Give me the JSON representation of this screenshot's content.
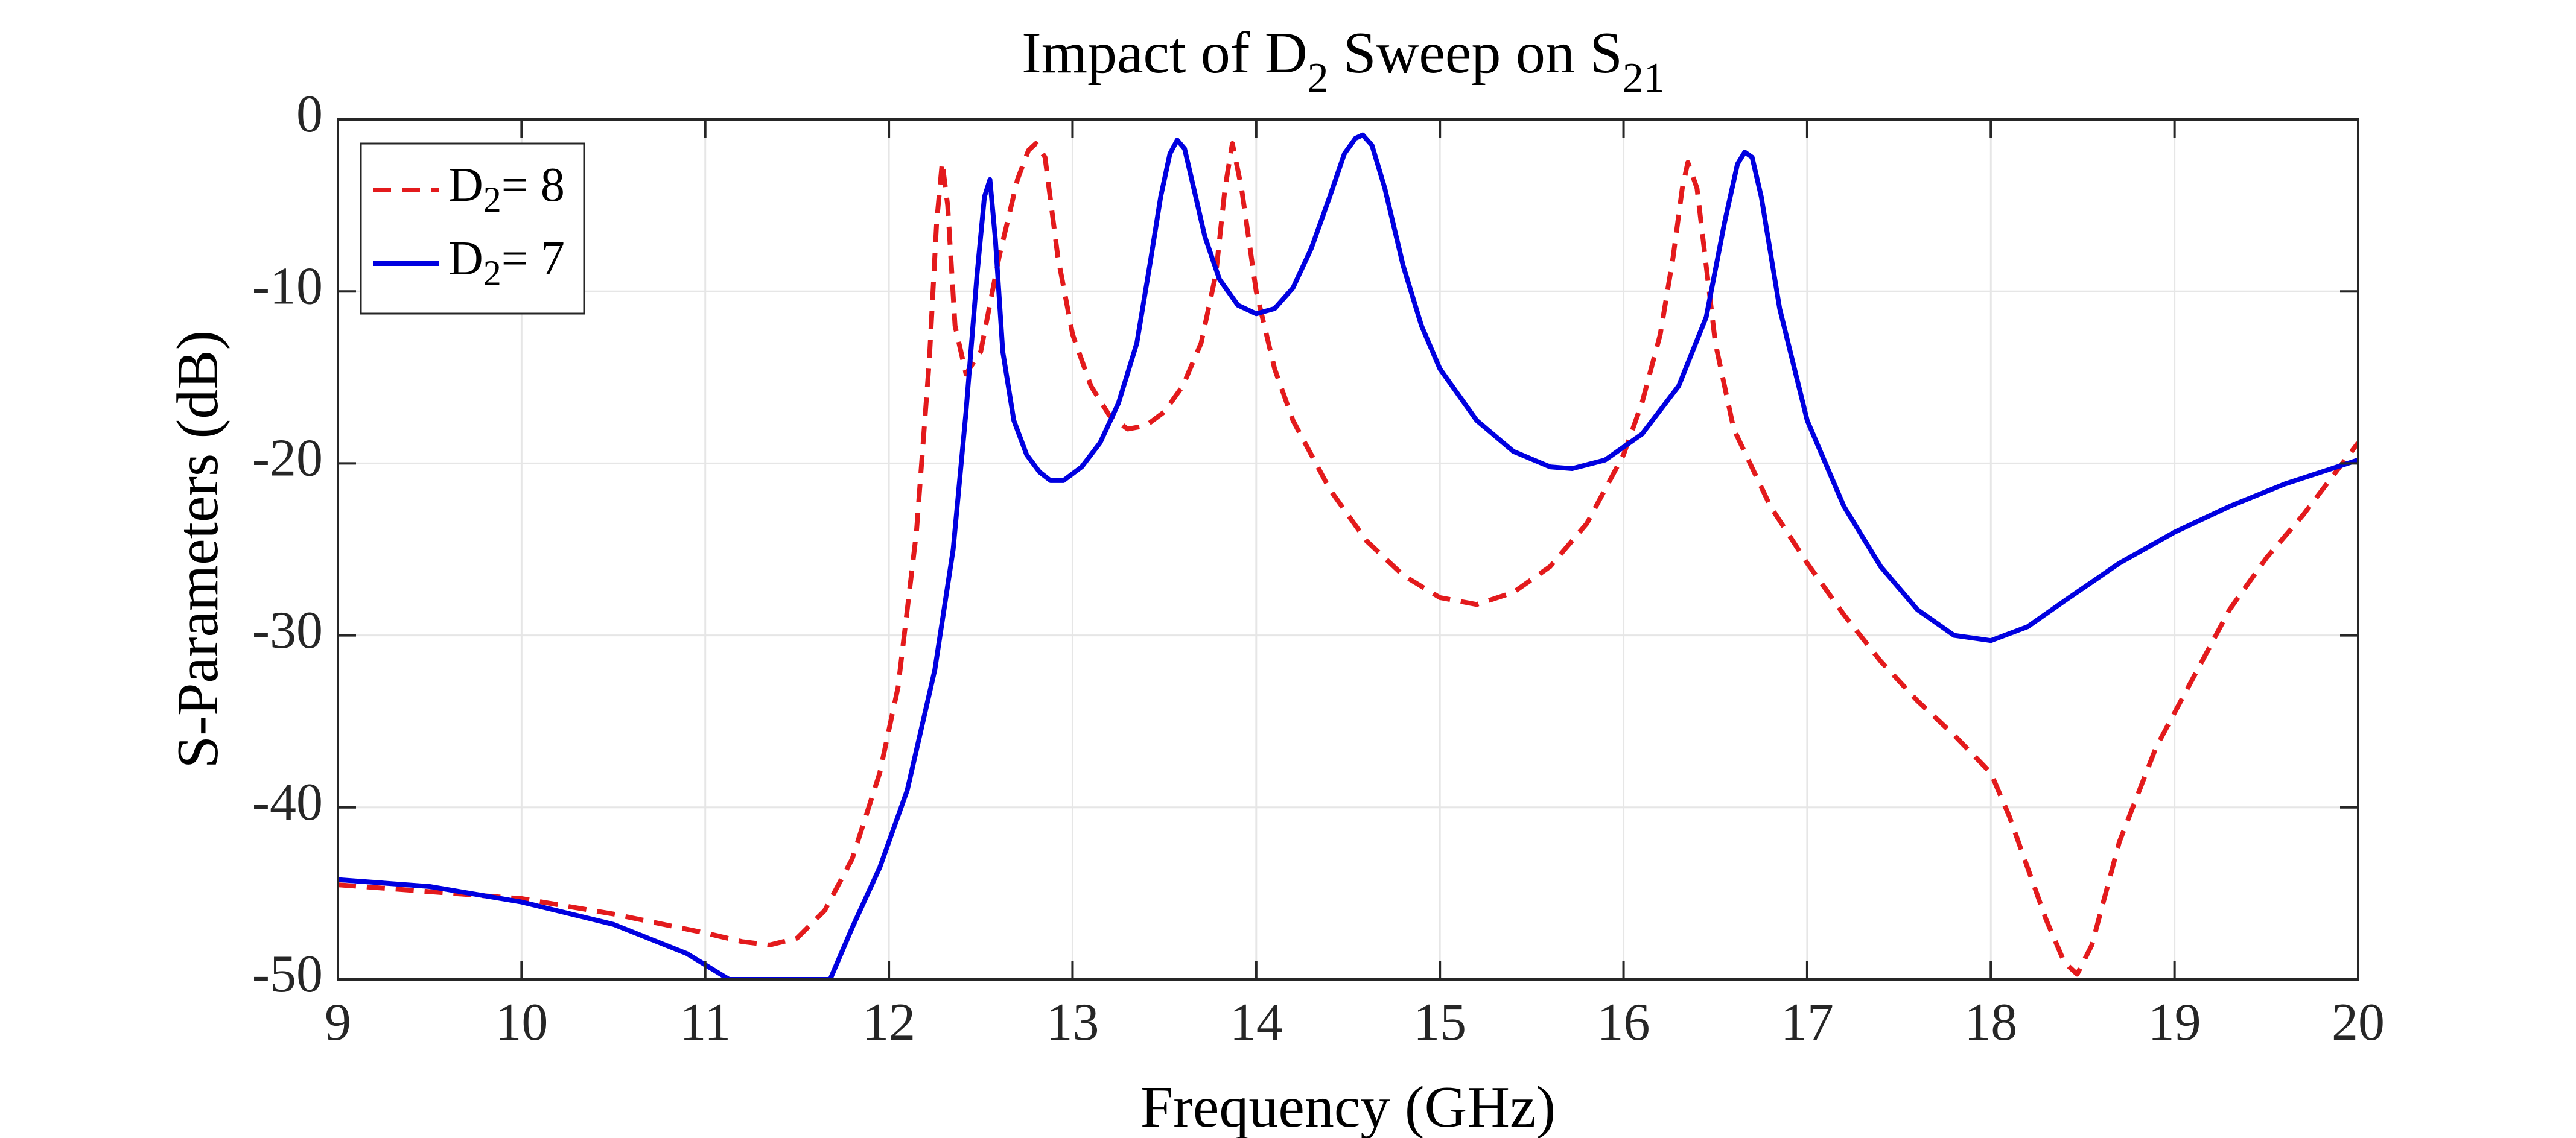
{
  "chart_data": {
    "type": "line",
    "title": {
      "main": "Impact of D",
      "sub1": "2",
      "mid": " Sweep on S",
      "sub2": "21"
    },
    "xlabel": "Frequency (GHz)",
    "ylabel": "S-Parameters (dB)",
    "xlim": [
      9,
      20
    ],
    "ylim": [
      -50,
      0
    ],
    "xticks": [
      9,
      10,
      11,
      12,
      13,
      14,
      15,
      16,
      17,
      18,
      19,
      20
    ],
    "yticks": [
      0,
      -10,
      -20,
      -30,
      -40,
      -50
    ],
    "grid": true,
    "legend_position": "top-left",
    "series": [
      {
        "name": "D2= 8",
        "legend": {
          "main": "D",
          "sub": "2",
          "rest": "= 8"
        },
        "color": "#e31a1c",
        "style": "dashed",
        "x": [
          9.0,
          9.5,
          10.0,
          10.5,
          11.0,
          11.2,
          11.35,
          11.5,
          11.65,
          11.8,
          11.95,
          12.05,
          12.15,
          12.22,
          12.26,
          12.29,
          12.32,
          12.36,
          12.42,
          12.5,
          12.6,
          12.7,
          12.76,
          12.8,
          12.85,
          12.92,
          13.0,
          13.1,
          13.2,
          13.3,
          13.4,
          13.5,
          13.6,
          13.7,
          13.78,
          13.83,
          13.87,
          13.92,
          14.0,
          14.1,
          14.2,
          14.4,
          14.6,
          14.8,
          15.0,
          15.2,
          15.4,
          15.6,
          15.8,
          16.0,
          16.1,
          16.2,
          16.27,
          16.32,
          16.35,
          16.4,
          16.5,
          16.6,
          16.8,
          17.0,
          17.2,
          17.4,
          17.6,
          17.8,
          18.0,
          18.1,
          18.2,
          18.3,
          18.4,
          18.47,
          18.55,
          18.7,
          18.9,
          19.1,
          19.3,
          19.5,
          19.7,
          20.0
        ],
        "y": [
          -44.5,
          -44.9,
          -45.3,
          -46.2,
          -47.3,
          -47.8,
          -48.0,
          -47.6,
          -46.0,
          -43.0,
          -38.0,
          -33.0,
          -24.0,
          -14.0,
          -6.0,
          -2.5,
          -5.0,
          -12.0,
          -14.8,
          -13.5,
          -8.0,
          -3.5,
          -1.8,
          -1.4,
          -2.2,
          -8.0,
          -12.5,
          -15.5,
          -17.2,
          -18.0,
          -17.8,
          -17.0,
          -15.5,
          -13.0,
          -9.0,
          -4.0,
          -1.4,
          -4.0,
          -10.0,
          -14.5,
          -17.5,
          -21.5,
          -24.5,
          -26.5,
          -27.8,
          -28.2,
          -27.5,
          -26.0,
          -23.5,
          -19.5,
          -16.5,
          -12.5,
          -8.0,
          -4.0,
          -2.5,
          -4.0,
          -13.0,
          -18.0,
          -22.5,
          -25.8,
          -28.8,
          -31.5,
          -33.8,
          -35.8,
          -38.0,
          -40.5,
          -43.5,
          -46.5,
          -49.0,
          -49.7,
          -48.0,
          -42.0,
          -36.5,
          -32.5,
          -28.5,
          -25.5,
          -23.0,
          -18.8
        ]
      },
      {
        "name": "D2= 7",
        "legend": {
          "main": "D",
          "sub": "2",
          "rest": "= 7"
        },
        "color": "#0000e0",
        "style": "solid",
        "x": [
          9.0,
          9.5,
          10.0,
          10.5,
          10.9,
          11.13,
          11.68,
          11.8,
          11.95,
          12.1,
          12.25,
          12.35,
          12.42,
          12.48,
          12.52,
          12.55,
          12.58,
          12.62,
          12.68,
          12.75,
          12.82,
          12.88,
          12.95,
          13.05,
          13.15,
          13.25,
          13.35,
          13.42,
          13.48,
          13.53,
          13.57,
          13.61,
          13.66,
          13.72,
          13.8,
          13.9,
          14.0,
          14.1,
          14.2,
          14.3,
          14.4,
          14.48,
          14.54,
          14.58,
          14.63,
          14.7,
          14.8,
          14.9,
          15.0,
          15.2,
          15.4,
          15.6,
          15.72,
          15.9,
          16.1,
          16.3,
          16.45,
          16.55,
          16.62,
          16.66,
          16.7,
          16.75,
          16.85,
          17.0,
          17.2,
          17.4,
          17.6,
          17.8,
          18.0,
          18.2,
          18.4,
          18.7,
          19.0,
          19.3,
          19.6,
          20.0
        ],
        "y": [
          -44.2,
          -44.6,
          -45.5,
          -46.8,
          -48.5,
          -50.0,
          -50.0,
          -47.0,
          -43.5,
          -39.0,
          -32.0,
          -25.0,
          -17.0,
          -9.0,
          -4.5,
          -3.5,
          -7.0,
          -13.5,
          -17.5,
          -19.5,
          -20.5,
          -21.0,
          -21.0,
          -20.2,
          -18.8,
          -16.5,
          -13.0,
          -8.5,
          -4.5,
          -2.0,
          -1.2,
          -1.7,
          -4.0,
          -6.8,
          -9.3,
          -10.8,
          -11.3,
          -11.0,
          -9.8,
          -7.5,
          -4.5,
          -2.0,
          -1.1,
          -0.9,
          -1.5,
          -4.0,
          -8.5,
          -12.0,
          -14.5,
          -17.5,
          -19.3,
          -20.2,
          -20.3,
          -19.8,
          -18.3,
          -15.5,
          -11.5,
          -6.0,
          -2.6,
          -1.9,
          -2.2,
          -4.5,
          -11.0,
          -17.5,
          -22.5,
          -26.0,
          -28.5,
          -30.0,
          -30.3,
          -29.5,
          -28.0,
          -25.8,
          -24.0,
          -22.5,
          -21.2,
          -19.8
        ]
      }
    ]
  }
}
